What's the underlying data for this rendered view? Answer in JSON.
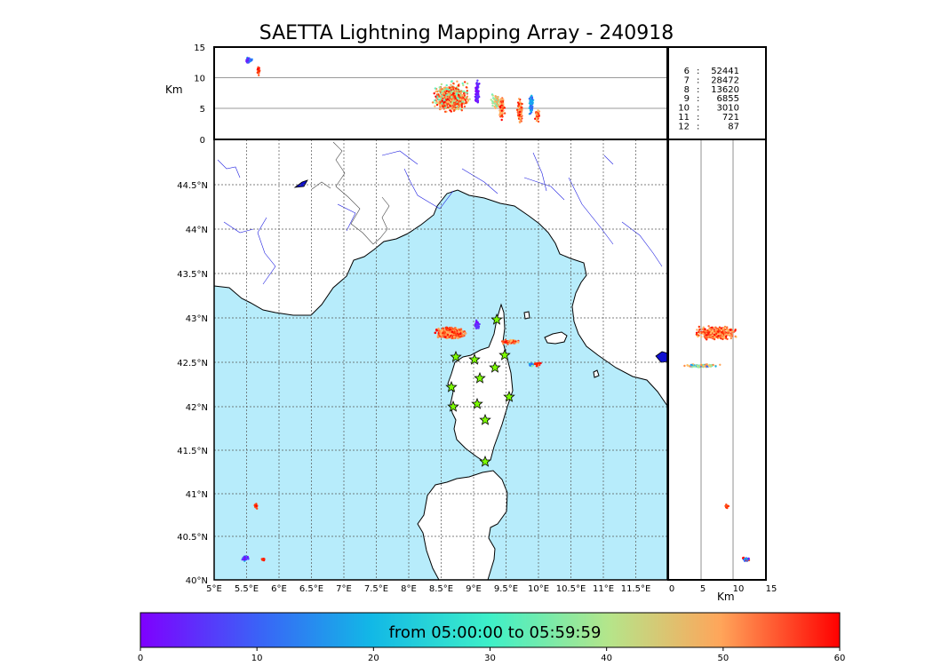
{
  "title": "SAETTA Lightning Mapping Array - 240918",
  "top_panel": {
    "ylabel": "Km",
    "yticks": [
      "15",
      "10",
      "5",
      "0"
    ]
  },
  "side_panel": {
    "xlabel": "Km",
    "xticks": [
      "0",
      "5",
      "10",
      "15"
    ]
  },
  "map": {
    "lon_labels": [
      "5°E",
      "5.5°E",
      "6°E",
      "6.5°E",
      "7°E",
      "7.5°E",
      "8°E",
      "8.5°E",
      "9°E",
      "9.5°E",
      "10°E",
      "10.5°E",
      "11°E",
      "11.5°E"
    ],
    "lat_labels": [
      "44.5°N",
      "44°N",
      "43.5°N",
      "43°N",
      "42.5°N",
      "42°N",
      "41.5°N",
      "41°N",
      "40.5°N",
      "40°N"
    ],
    "sea_color": "#b7ecfb",
    "station_color": "#7cfc00"
  },
  "station_counts": [
    {
      "station": "6",
      "sep": ":",
      "count": "52441",
      "color": "#000000"
    },
    {
      "station": "7",
      "sep": ":",
      "count": "28472",
      "color": "#ff0000"
    },
    {
      "station": "8",
      "sep": ":",
      "count": "13620",
      "color": "#000000"
    },
    {
      "station": "9",
      "sep": ":",
      "count": "6855",
      "color": "#000000"
    },
    {
      "station": "10",
      "sep": ":",
      "count": "3010",
      "color": "#000000"
    },
    {
      "station": "11",
      "sep": ":",
      "count": "721",
      "color": "#000000"
    },
    {
      "station": "12",
      "sep": ":",
      "count": "87",
      "color": "#000000"
    }
  ],
  "colorbar": {
    "caption": "from 05:00:00 to 05:59:59",
    "ticks": [
      "0",
      "10",
      "20",
      "30",
      "40",
      "50",
      "60"
    ],
    "colormap": "rainbow"
  }
}
